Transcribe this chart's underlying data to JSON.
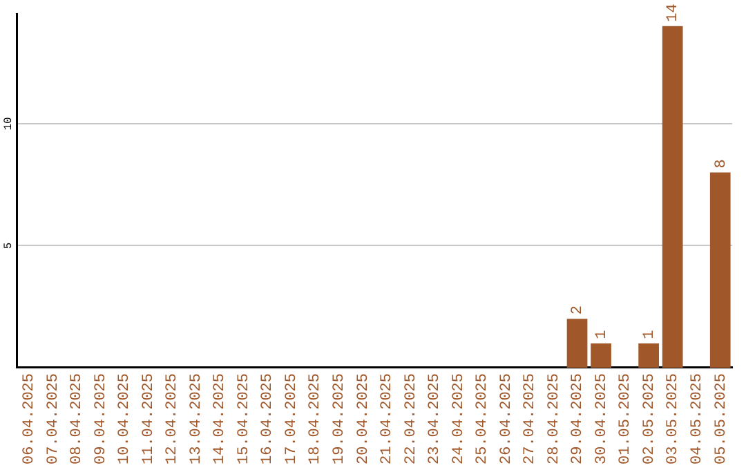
{
  "chart_data": {
    "type": "bar",
    "categories": [
      "06.04.2025",
      "07.04.2025",
      "08.04.2025",
      "09.04.2025",
      "10.04.2025",
      "11.04.2025",
      "12.04.2025",
      "13.04.2025",
      "14.04.2025",
      "15.04.2025",
      "16.04.2025",
      "17.04.2025",
      "18.04.2025",
      "19.04.2025",
      "20.04.2025",
      "21.04.2025",
      "22.04.2025",
      "23.04.2025",
      "24.04.2025",
      "25.04.2025",
      "26.04.2025",
      "27.04.2025",
      "28.04.2025",
      "29.04.2025",
      "30.04.2025",
      "01.05.2025",
      "02.05.2025",
      "03.05.2025",
      "04.05.2025",
      "05.05.2025"
    ],
    "values": [
      0,
      0,
      0,
      0,
      0,
      0,
      0,
      0,
      0,
      0,
      0,
      0,
      0,
      0,
      0,
      0,
      0,
      0,
      0,
      0,
      0,
      0,
      0,
      2,
      1,
      0,
      1,
      14,
      0,
      8
    ],
    "value_labels": [
      null,
      null,
      null,
      null,
      null,
      null,
      null,
      null,
      null,
      null,
      null,
      null,
      null,
      null,
      null,
      null,
      null,
      null,
      null,
      null,
      null,
      null,
      null,
      "2",
      "1",
      null,
      "1",
      "14",
      null,
      "8"
    ],
    "color": "#a0582a",
    "ylim": [
      0,
      14.5
    ],
    "yticks": [
      5,
      10
    ],
    "grid": "y",
    "legend": false
  }
}
